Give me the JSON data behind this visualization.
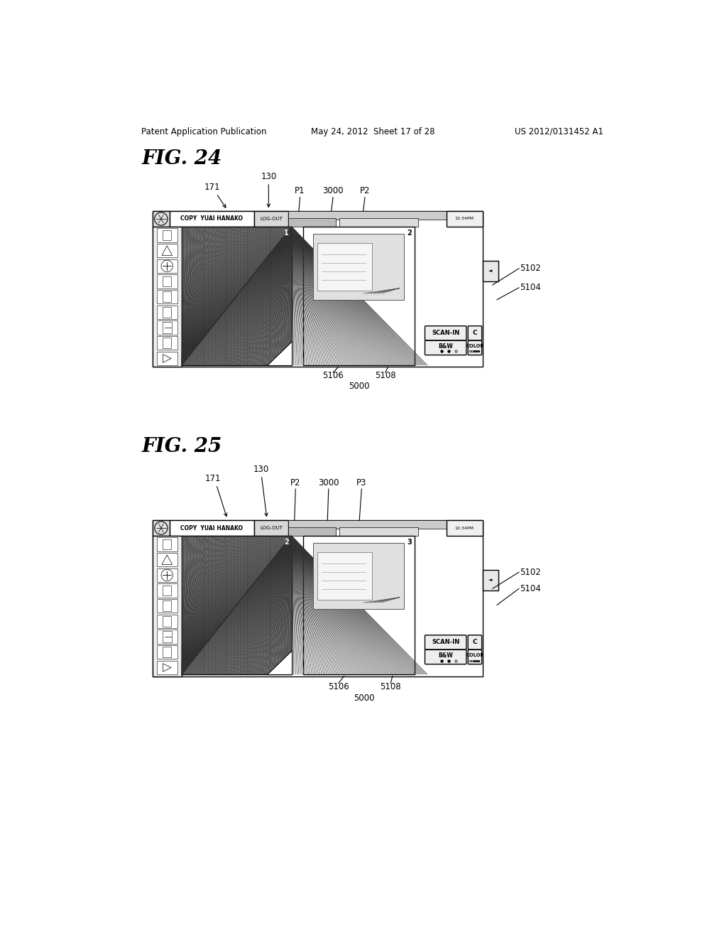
{
  "bg_color": "#ffffff",
  "line_color": "#000000",
  "header_text_left": "Patent Application Publication",
  "header_text_mid": "May 24, 2012  Sheet 17 of 28",
  "header_text_right": "US 2012/0131452 A1",
  "fig24_label": "FIG. 24",
  "fig25_label": "FIG. 25"
}
